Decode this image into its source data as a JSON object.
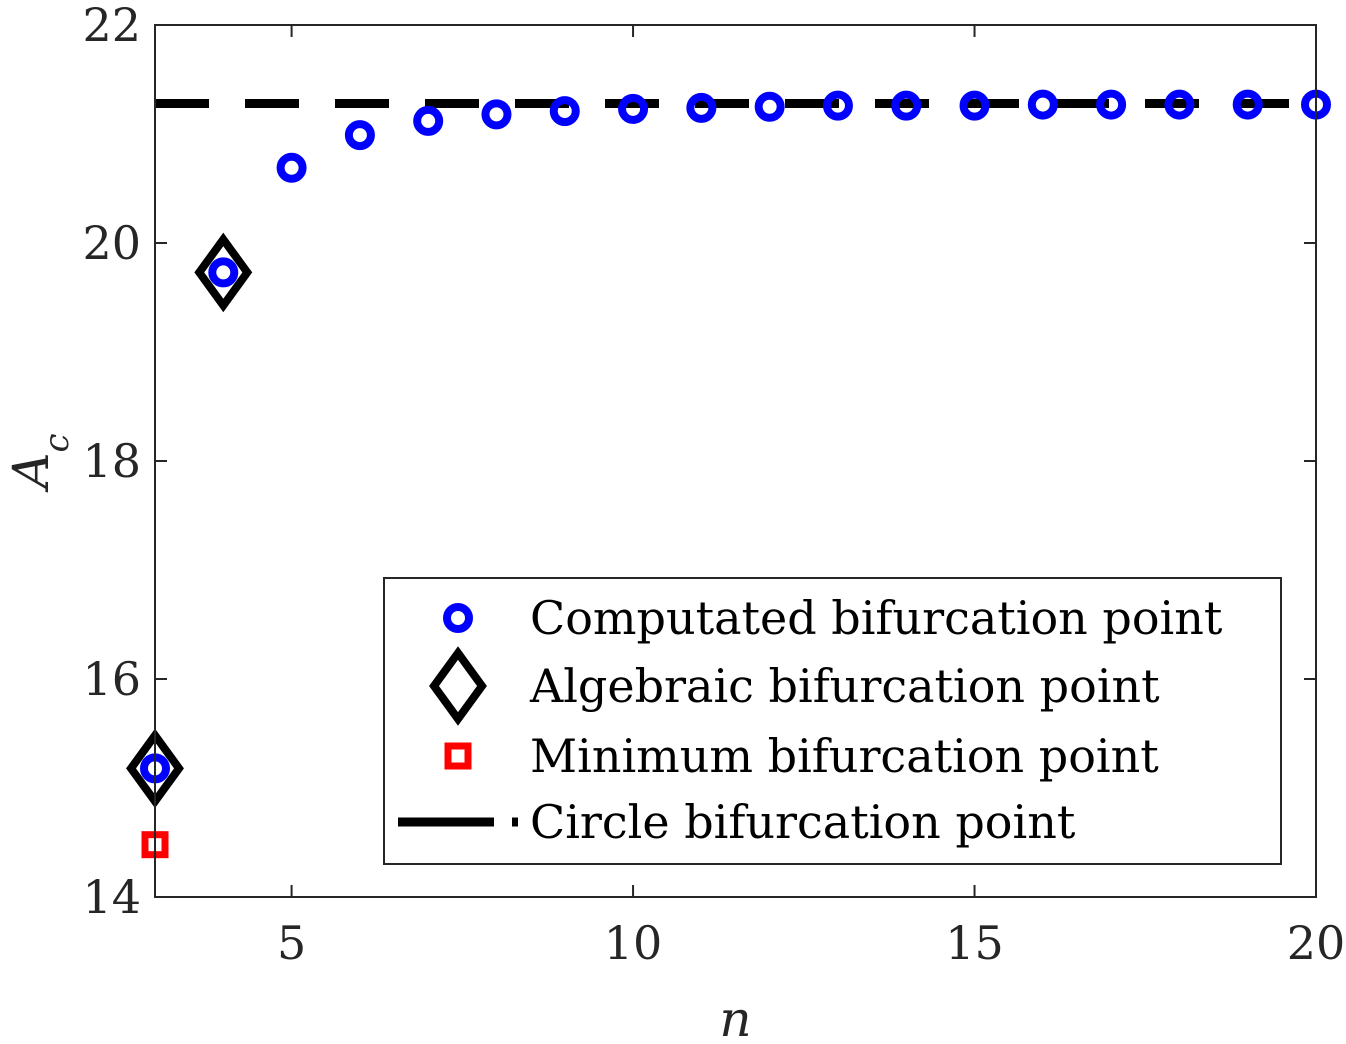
{
  "chart_data": {
    "type": "scatter",
    "xlabel": "n",
    "ylabel": "A",
    "ylabel_subscript": "c",
    "xlim": [
      3,
      20
    ],
    "ylim": [
      14,
      22
    ],
    "xticks": [
      5,
      10,
      15,
      20
    ],
    "yticks": [
      14,
      16,
      18,
      20,
      22
    ],
    "grid": false,
    "legend_position": "lower-right",
    "series": [
      {
        "name": "Computated bifurcation point",
        "marker": "circle",
        "color": "#0000ff",
        "x": [
          3,
          4,
          5,
          6,
          7,
          8,
          9,
          10,
          11,
          12,
          13,
          14,
          15,
          16,
          17,
          18,
          19,
          20
        ],
        "y": [
          15.18,
          19.73,
          20.69,
          20.99,
          21.12,
          21.18,
          21.21,
          21.23,
          21.24,
          21.25,
          21.26,
          21.26,
          21.26,
          21.27,
          21.27,
          21.27,
          21.27,
          21.27
        ]
      },
      {
        "name": "Algebraic bifurcation point",
        "marker": "diamond",
        "color": "#000000",
        "x": [
          3,
          4
        ],
        "y": [
          15.18,
          19.73
        ]
      },
      {
        "name": "Minimum bifurcation point",
        "marker": "square",
        "color": "#ff0000",
        "x": [
          3
        ],
        "y": [
          14.48
        ]
      },
      {
        "name": "Circle bifurcation point",
        "marker": "dashed-line",
        "color": "#000000",
        "y": 21.28
      }
    ]
  }
}
